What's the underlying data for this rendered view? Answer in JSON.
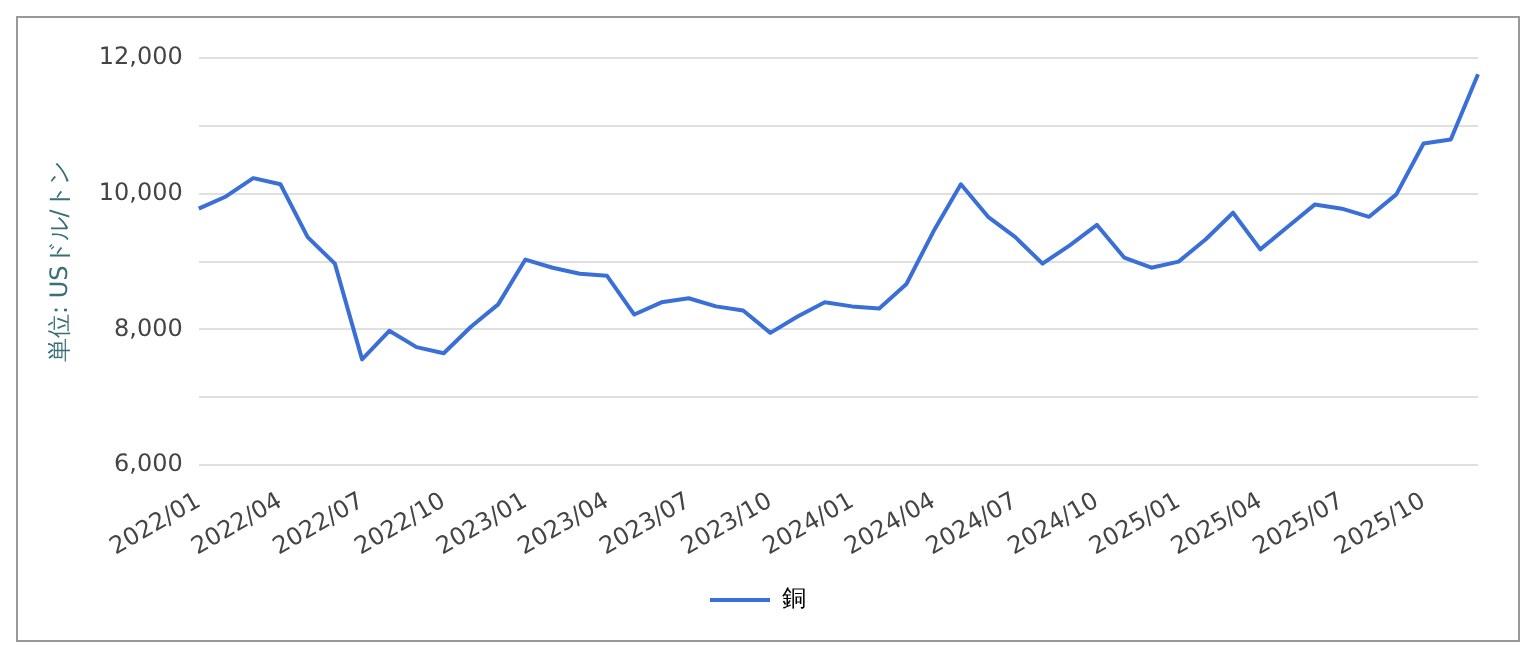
{
  "chart_data": {
    "type": "line",
    "ylabel": "単位: USドル/トン",
    "categories": [
      "2022/01",
      null,
      null,
      "2022/04",
      null,
      null,
      "2022/07",
      null,
      null,
      "2022/10",
      null,
      null,
      "2023/01",
      null,
      null,
      "2023/04",
      null,
      null,
      "2023/07",
      null,
      null,
      "2023/10",
      null,
      null,
      "2024/01",
      null,
      null,
      "2024/04",
      null,
      null,
      "2024/07",
      null,
      null,
      "2024/10",
      null,
      null,
      "2025/01",
      null,
      null,
      "2025/04",
      null,
      null,
      "2025/07",
      null,
      null,
      "2025/10",
      null,
      null
    ],
    "series": [
      {
        "name": "銅",
        "color": "#3a6fd8",
        "values": [
          9780,
          9960,
          10230,
          10140,
          9360,
          8970,
          7560,
          7980,
          7740,
          7650,
          8040,
          8370,
          9030,
          8910,
          8820,
          8790,
          8220,
          8400,
          8460,
          8340,
          8280,
          7950,
          8190,
          8400,
          8340,
          8310,
          8670,
          9450,
          10140,
          9660,
          9360,
          8970,
          9240,
          9540,
          9060,
          8910,
          9000,
          9330,
          9720,
          9180,
          9510,
          9840,
          9780,
          9660,
          9990,
          10740,
          10800,
          11760
        ]
      }
    ],
    "ylim": [
      6000,
      12000
    ],
    "yticks": [
      {
        "value": 6000,
        "label": "6,000"
      },
      {
        "value": 7000,
        "label": null
      },
      {
        "value": 8000,
        "label": "8,000"
      },
      {
        "value": 9000,
        "label": null
      },
      {
        "value": 10000,
        "label": "10,000"
      },
      {
        "value": 11000,
        "label": null
      },
      {
        "value": 12000,
        "label": "12,000"
      }
    ],
    "grid": "y",
    "legend": "bottom",
    "marker": "none",
    "line_style": "solid"
  }
}
